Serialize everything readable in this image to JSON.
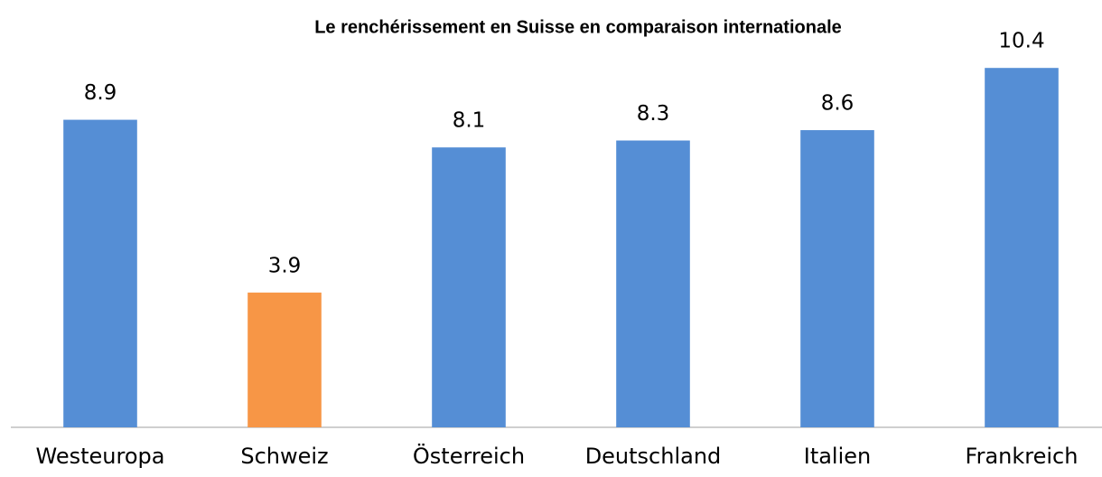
{
  "chart_data": {
    "type": "bar",
    "title": "Le renchérissement en Suisse en comparaison internationale",
    "categories": [
      "Westeuropa",
      "Schweiz",
      "Österreich",
      "Deutschland",
      "Italien",
      "Frankreich"
    ],
    "values": [
      8.9,
      3.9,
      8.1,
      8.3,
      8.6,
      10.4
    ],
    "colors": [
      "#558ed5",
      "#f79646",
      "#558ed5",
      "#558ed5",
      "#558ed5",
      "#558ed5"
    ],
    "ylim": [
      0,
      12
    ]
  }
}
